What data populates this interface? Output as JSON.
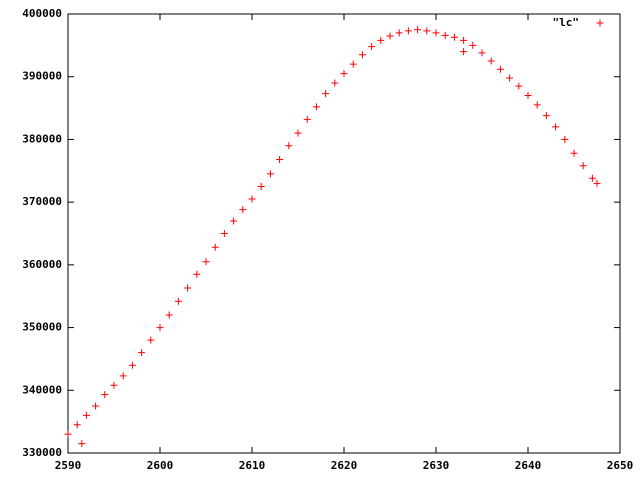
{
  "chart_data": {
    "type": "scatter",
    "series": [
      {
        "name": "\"lc\"",
        "color": "#ff0000",
        "x": [
          2590,
          2591,
          2592,
          2593,
          2594,
          2595,
          2596,
          2597,
          2598,
          2599,
          2600,
          2601,
          2602,
          2603,
          2604,
          2605,
          2606,
          2607,
          2608,
          2609,
          2610,
          2611,
          2612,
          2613,
          2614,
          2615,
          2616,
          2617,
          2618,
          2619,
          2620,
          2621,
          2622,
          2623,
          2624,
          2625,
          2626,
          2627,
          2628,
          2629,
          2630,
          2631,
          2632,
          2633,
          2634,
          2635,
          2636,
          2637,
          2638,
          2639,
          2640,
          2641,
          2642,
          2643,
          2644,
          2645,
          2646,
          2647,
          2647.5,
          2591.5,
          2633
        ],
        "values": [
          333000,
          334500,
          336000,
          337500,
          339300,
          340800,
          342300,
          344000,
          346000,
          348000,
          350000,
          352000,
          354200,
          356300,
          358500,
          360500,
          362800,
          365000,
          367000,
          368800,
          370500,
          372500,
          374500,
          376800,
          379000,
          381000,
          383200,
          385200,
          387300,
          389000,
          390500,
          392000,
          393500,
          394800,
          395800,
          396500,
          397000,
          397300,
          397500,
          397300,
          397000,
          396600,
          396300,
          395800,
          395000,
          393800,
          392500,
          391200,
          389800,
          388500,
          387000,
          385500,
          383800,
          382000,
          380000,
          377800,
          375800,
          373800,
          373000,
          331500,
          394000
        ]
      }
    ],
    "xlim": [
      2590,
      2650
    ],
    "xticks": [
      2590,
      2600,
      2610,
      2620,
      2630,
      2640,
      2650
    ],
    "ylim": [
      330000,
      400000
    ],
    "yticks": [
      330000,
      340000,
      350000,
      360000,
      370000,
      380000,
      390000,
      400000
    ],
    "legend": "top right"
  }
}
